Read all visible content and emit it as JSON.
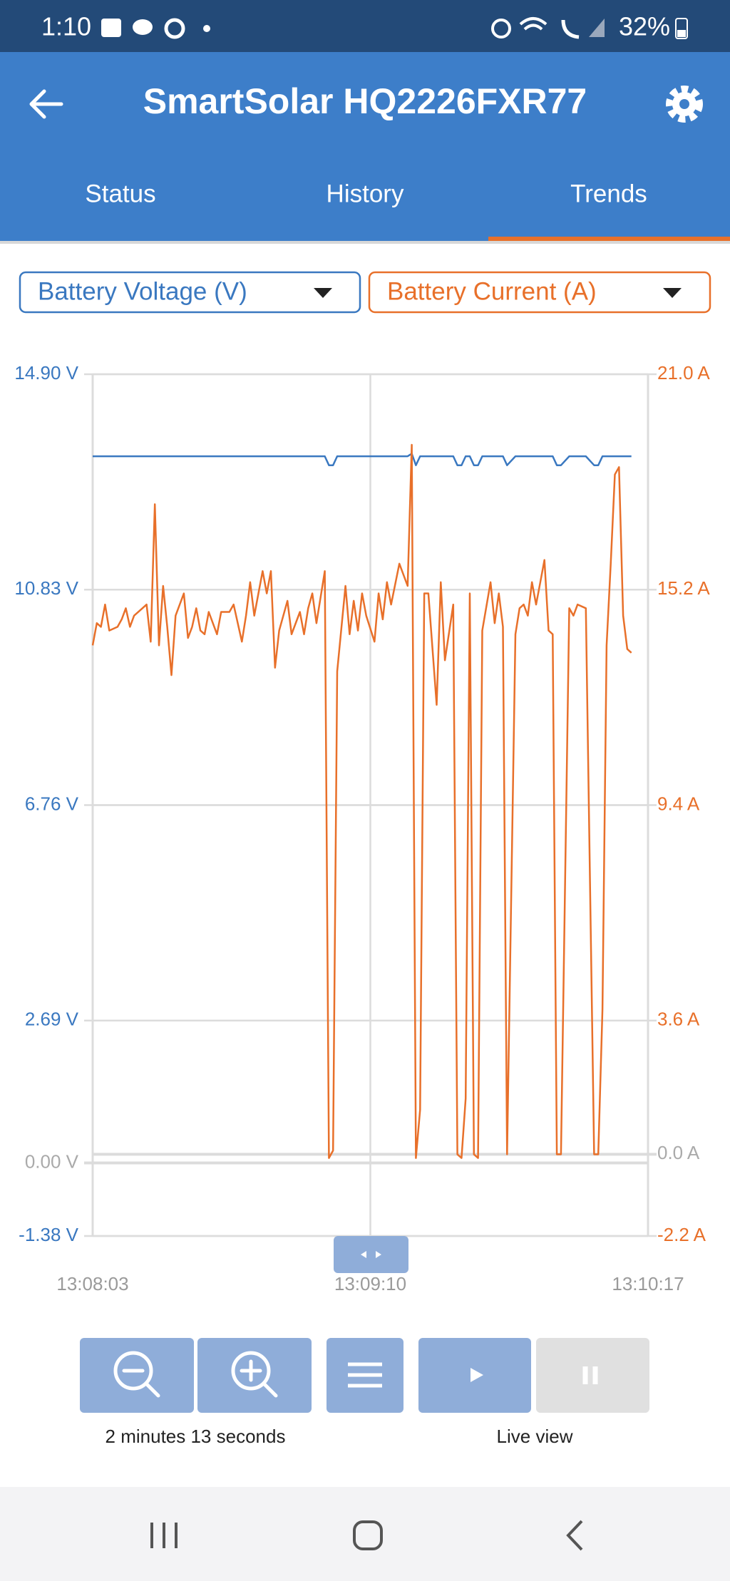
{
  "status_bar": {
    "time": "1:10",
    "battery": "32%"
  },
  "app_bar": {
    "title": "SmartSolar HQ2226FXR77"
  },
  "tabs": [
    "Status",
    "History",
    "Trends"
  ],
  "chart_data": {
    "type": "line",
    "x": [
      "13:08:03",
      "13:08:04",
      "13:08:05",
      "13:08:06",
      "13:08:07",
      "13:08:09",
      "13:08:10",
      "13:08:11",
      "13:08:12",
      "13:08:13",
      "13:08:15",
      "13:08:16",
      "13:08:17",
      "13:08:18",
      "13:08:19",
      "13:08:20",
      "13:08:21",
      "13:08:22",
      "13:08:23",
      "13:08:25",
      "13:08:26",
      "13:08:27",
      "13:08:28",
      "13:08:29",
      "13:08:30",
      "13:08:31",
      "13:08:33",
      "13:08:34",
      "13:08:35",
      "13:08:36",
      "13:08:37",
      "13:08:39",
      "13:08:40",
      "13:08:41",
      "13:08:42",
      "13:08:43",
      "13:08:44",
      "13:08:45",
      "13:08:46",
      "13:08:47",
      "13:08:48",
      "13:08:50",
      "13:08:51",
      "13:08:53",
      "13:08:54",
      "13:08:55",
      "13:08:56",
      "13:08:57",
      "13:08:59",
      "13:09:00",
      "13:09:01",
      "13:09:02",
      "13:09:04",
      "13:09:05",
      "13:09:06",
      "13:09:07",
      "13:09:08",
      "13:09:09",
      "13:09:11",
      "13:09:12",
      "13:09:13",
      "13:09:14",
      "13:09:15",
      "13:09:17",
      "13:09:18",
      "13:09:19",
      "13:09:20",
      "13:09:21",
      "13:09:22",
      "13:09:23",
      "13:09:24",
      "13:09:26",
      "13:09:27",
      "13:09:28",
      "13:09:30",
      "13:09:31",
      "13:09:32",
      "13:09:33",
      "13:09:34",
      "13:09:35",
      "13:09:36",
      "13:09:37",
      "13:09:39",
      "13:09:40",
      "13:09:41",
      "13:09:42",
      "13:09:43",
      "13:09:45",
      "13:09:46",
      "13:09:47",
      "13:09:48",
      "13:09:49",
      "13:09:50",
      "13:09:51",
      "13:09:52",
      "13:09:53",
      "13:09:54",
      "13:09:55",
      "13:09:56",
      "13:09:58",
      "13:09:59",
      "13:10:00",
      "13:10:02",
      "13:10:04",
      "13:10:05",
      "13:10:06",
      "13:10:07",
      "13:10:08",
      "13:10:09",
      "13:10:10",
      "13:10:11",
      "13:10:12",
      "13:10:13"
    ],
    "xlim": [
      "13:08:03",
      "13:10:17"
    ],
    "xticks": [
      "13:08:03",
      "13:09:10",
      "13:10:17"
    ],
    "ylim": [
      -1.38,
      14.9
    ],
    "yticks": [
      {
        "value": 14.9,
        "label": "14.90 V"
      },
      {
        "value": 10.83,
        "label": "10.83 V"
      },
      {
        "value": 6.76,
        "label": "6.76 V"
      },
      {
        "value": 2.69,
        "label": "2.69 V"
      },
      {
        "value": 0,
        "label": "0.00 V"
      },
      {
        "value": -1.38,
        "label": "-1.38 V"
      }
    ],
    "y2lim": [
      -2.2,
      21.0
    ],
    "y2ticks": [
      {
        "value": 21.0,
        "label": "21.0 A"
      },
      {
        "value": 15.2,
        "label": "15.2 A"
      },
      {
        "value": 9.4,
        "label": "9.4 A"
      },
      {
        "value": 3.6,
        "label": "3.6 A"
      },
      {
        "value": 0,
        "label": "0.0 A"
      },
      {
        "value": -2.2,
        "label": "-2.2 A"
      }
    ],
    "grid": true,
    "series": [
      {
        "name": "Battery Voltage (V)",
        "color": "#3a78c0",
        "values": [
          13.35,
          13.35,
          13.35,
          13.35,
          13.35,
          13.35,
          13.35,
          13.35,
          13.35,
          13.35,
          13.35,
          13.35,
          13.35,
          13.35,
          13.35,
          13.35,
          13.35,
          13.35,
          13.35,
          13.35,
          13.35,
          13.35,
          13.35,
          13.35,
          13.35,
          13.35,
          13.35,
          13.35,
          13.35,
          13.35,
          13.35,
          13.35,
          13.35,
          13.35,
          13.35,
          13.35,
          13.35,
          13.35,
          13.35,
          13.35,
          13.35,
          13.35,
          13.35,
          13.35,
          13.35,
          13.35,
          13.35,
          13.35,
          13.35,
          13.18,
          13.18,
          13.35,
          13.35,
          13.35,
          13.35,
          13.35,
          13.35,
          13.35,
          13.35,
          13.35,
          13.35,
          13.35,
          13.35,
          13.35,
          13.35,
          13.35,
          13.4,
          13.18,
          13.35,
          13.35,
          13.35,
          13.35,
          13.35,
          13.35,
          13.35,
          13.18,
          13.18,
          13.35,
          13.35,
          13.18,
          13.18,
          13.35,
          13.35,
          13.35,
          13.35,
          13.35,
          13.18,
          13.35,
          13.35,
          13.35,
          13.35,
          13.35,
          13.35,
          13.35,
          13.35,
          13.35,
          13.35,
          13.18,
          13.18,
          13.35,
          13.35,
          13.35,
          13.35,
          13.18,
          13.18,
          13.35,
          13.35,
          13.35,
          13.35,
          13.35,
          13.35,
          13.35,
          13.35
        ]
      },
      {
        "name": "Battery Current (A)",
        "color": "#e8702a",
        "axis": "y2",
        "values": [
          13.7,
          14.3,
          14.2,
          14.8,
          14.1,
          14.2,
          14.4,
          14.7,
          14.2,
          14.5,
          14.7,
          14.8,
          13.8,
          17.5,
          13.7,
          15.3,
          14.2,
          12.9,
          14.5,
          15.1,
          13.9,
          14.2,
          14.7,
          14.1,
          14.0,
          14.6,
          14.0,
          14.6,
          14.6,
          14.6,
          14.8,
          13.8,
          14.5,
          15.4,
          14.5,
          15.1,
          15.7,
          15.1,
          15.7,
          13.1,
          14.1,
          14.9,
          14.0,
          14.6,
          14.0,
          14.7,
          15.1,
          14.3,
          15.7,
          -0.1,
          0.1,
          13.0,
          15.3,
          14.0,
          14.9,
          14.1,
          15.1,
          14.5,
          13.8,
          15.1,
          14.4,
          15.4,
          14.8,
          15.9,
          15.6,
          15.3,
          19.1,
          -0.1,
          1.2,
          15.1,
          15.1,
          12.1,
          15.4,
          13.3,
          14.8,
          0.0,
          -0.1,
          1.5,
          15.1,
          0.0,
          -0.1,
          14.1,
          15.4,
          14.3,
          15.1,
          14.2,
          0.0,
          14.0,
          14.7,
          14.8,
          14.5,
          15.4,
          14.8,
          15.4,
          16.0,
          14.1,
          14.0,
          0.0,
          0.0,
          14.7,
          14.5,
          14.8,
          14.7,
          0.0,
          0.0,
          3.9,
          13.7,
          15.9,
          18.3,
          18.5,
          14.5,
          13.6,
          13.5
        ]
      }
    ]
  },
  "controls": {
    "zoom_span": "2 minutes 13 seconds",
    "live_view": "Live view"
  }
}
